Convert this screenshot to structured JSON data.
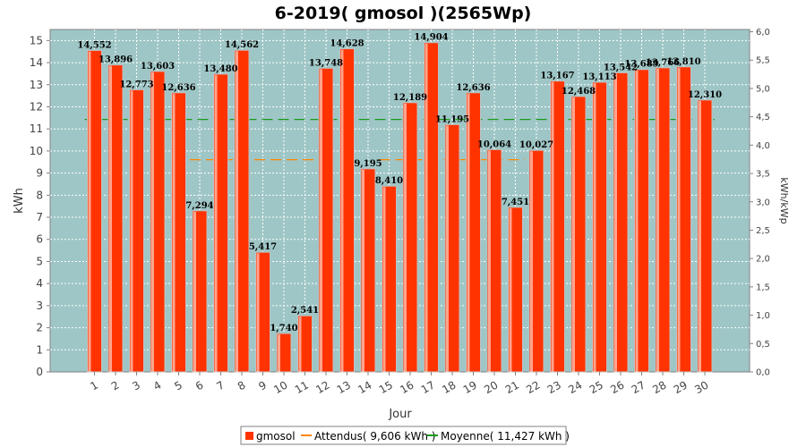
{
  "chart_data": {
    "type": "bar",
    "title": "6-2019( gmosol )(2565Wp)",
    "xlabel": "Jour",
    "ylabel": "kWh",
    "y2label": "kWh/kWp",
    "ylim": [
      0,
      15.5
    ],
    "y2lim": [
      0,
      6.04
    ],
    "yticks": [
      0,
      1,
      2,
      3,
      4,
      5,
      6,
      7,
      8,
      9,
      10,
      11,
      12,
      13,
      14,
      15
    ],
    "y2ticks": [
      "0,0",
      "0,5",
      "1,0",
      "1,5",
      "2,0",
      "2,5",
      "3,0",
      "3,5",
      "4,0",
      "4,5",
      "5,0",
      "5,5",
      "6,0"
    ],
    "categories": [
      "1",
      "2",
      "3",
      "4",
      "5",
      "6",
      "7",
      "8",
      "9",
      "10",
      "11",
      "12",
      "13",
      "14",
      "15",
      "16",
      "17",
      "18",
      "19",
      "20",
      "21",
      "22",
      "23",
      "24",
      "25",
      "26",
      "27",
      "28",
      "29",
      "30"
    ],
    "series": [
      {
        "name": "gmosol",
        "color": "#ff3300",
        "values": [
          14.552,
          13.896,
          12.773,
          13.603,
          12.636,
          7.294,
          13.48,
          14.562,
          5.417,
          1.74,
          2.541,
          13.748,
          14.628,
          9.195,
          8.41,
          12.189,
          14.904,
          11.195,
          12.636,
          10.064,
          7.451,
          10.027,
          13.167,
          12.468,
          13.113,
          13.542,
          13.689,
          13.766,
          13.81,
          12.31
        ],
        "labels": [
          "14,552",
          "13,896",
          "12,773",
          "13,603",
          "12,636",
          "7,294",
          "13,480",
          "14,562",
          "5,417",
          "1,740",
          "2,541",
          "13,748",
          "14,628",
          "9,195",
          "8,410",
          "12,189",
          "14,904",
          "11,195",
          "12,636",
          "10,064",
          "7,451",
          "10,027",
          "13,167",
          "12,468",
          "13,113",
          "13,542",
          "13,689",
          "13,766",
          "13,810",
          "12,310"
        ]
      }
    ],
    "lines": [
      {
        "name": "Attendus( 9,606 kWh )",
        "color": "#ff8800",
        "segments": [
          [
            6,
            11,
            9.606
          ],
          [
            15,
            21,
            9.606
          ]
        ]
      },
      {
        "name": "Moyenne( 11,427 kWh )",
        "color": "#1a9a1a",
        "segments": [
          [
            1,
            30,
            11.427
          ]
        ]
      }
    ],
    "legend": [
      "gmosol",
      "Attendus( 9,606 kWh )",
      "Moyenne( 11,427 kWh )"
    ],
    "legend_position": "bottom",
    "grid": true,
    "plot_background": "#9fc6c6"
  }
}
